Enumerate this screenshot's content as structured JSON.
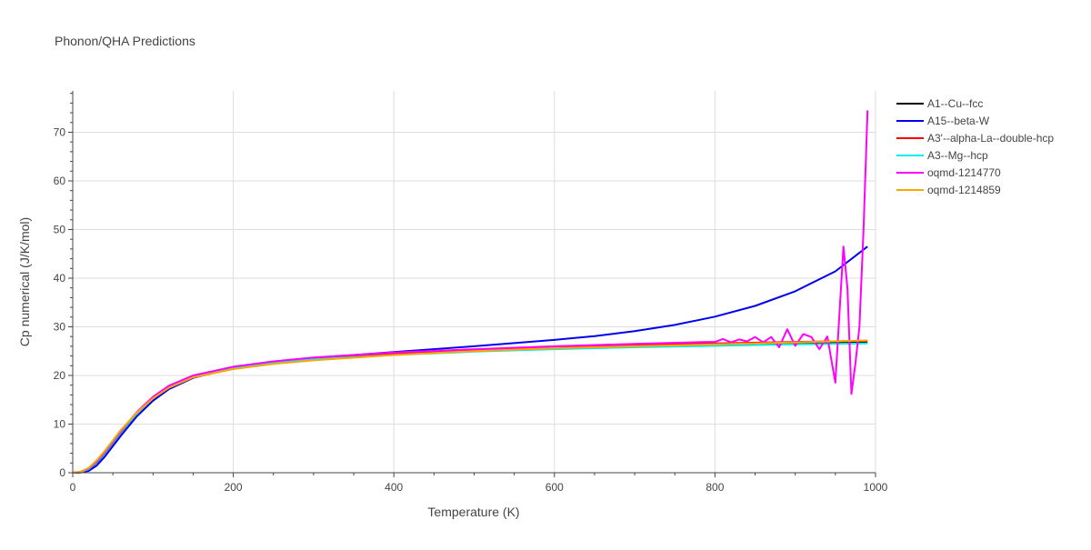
{
  "chart_data": {
    "type": "line",
    "title": "Phonon/QHA Predictions",
    "xlabel": "Temperature (K)",
    "ylabel": "Cp numerical (J/K/mol)",
    "xlim": [
      0,
      1000
    ],
    "ylim": [
      0,
      78.5
    ],
    "xticks": [
      0,
      200,
      400,
      600,
      800,
      1000
    ],
    "yticks": [
      0,
      10,
      20,
      30,
      40,
      50,
      60,
      70
    ],
    "grid": true,
    "legend_position": "top-right",
    "series": [
      {
        "name": "A1--Cu--fcc",
        "color": "#000000",
        "x": [
          0,
          10,
          20,
          30,
          40,
          60,
          80,
          100,
          120,
          150,
          200,
          250,
          300,
          400,
          500,
          600,
          700,
          800,
          900,
          990
        ],
        "y": [
          0,
          0.1,
          0.7,
          2.1,
          4.0,
          8.3,
          12.2,
          15.3,
          17.6,
          19.8,
          21.6,
          22.8,
          23.5,
          24.5,
          25.2,
          25.7,
          26.0,
          26.3,
          26.6,
          26.9
        ]
      },
      {
        "name": "A15--beta-W",
        "color": "#0000ee",
        "x": [
          0,
          10,
          20,
          30,
          40,
          60,
          80,
          100,
          120,
          150,
          200,
          250,
          300,
          400,
          500,
          600,
          650,
          700,
          750,
          800,
          850,
          900,
          950,
          990
        ],
        "y": [
          0,
          0.05,
          0.4,
          1.5,
          3.3,
          7.6,
          11.6,
          14.8,
          17.2,
          19.5,
          21.5,
          22.8,
          23.6,
          24.8,
          26.0,
          27.3,
          28.1,
          29.1,
          30.4,
          32.1,
          34.3,
          37.3,
          41.4,
          46.5
        ]
      },
      {
        "name": "A3'--alpha-La--double-hcp",
        "color": "#ff0000",
        "x": [
          0,
          10,
          20,
          30,
          40,
          60,
          80,
          100,
          120,
          150,
          200,
          250,
          300,
          400,
          500,
          600,
          700,
          800,
          900,
          990
        ],
        "y": [
          0,
          0.15,
          0.8,
          2.3,
          4.2,
          8.5,
          12.3,
          15.4,
          17.7,
          19.9,
          21.6,
          22.7,
          23.4,
          24.4,
          25.2,
          25.9,
          26.3,
          26.6,
          26.9,
          27.1
        ]
      },
      {
        "name": "A3--Mg--hcp",
        "color": "#00eeee",
        "x": [
          0,
          10,
          20,
          30,
          40,
          60,
          80,
          100,
          120,
          150,
          200,
          250,
          300,
          400,
          500,
          600,
          700,
          800,
          900,
          990
        ],
        "y": [
          0,
          0.12,
          0.75,
          2.2,
          4.1,
          8.4,
          12.2,
          15.3,
          17.6,
          19.8,
          21.5,
          22.6,
          23.3,
          24.2,
          24.9,
          25.4,
          25.8,
          26.1,
          26.4,
          26.6
        ]
      },
      {
        "name": "oqmd-1214770",
        "color": "#ff00ff",
        "x": [
          0,
          10,
          20,
          30,
          40,
          60,
          80,
          100,
          120,
          150,
          200,
          250,
          300,
          400,
          500,
          600,
          700,
          790,
          800,
          810,
          820,
          830,
          840,
          850,
          860,
          870,
          880,
          890,
          900,
          910,
          920,
          930,
          940,
          950,
          960,
          965,
          970,
          975,
          980,
          985,
          990
        ],
        "y": [
          0,
          0.2,
          0.9,
          2.4,
          4.3,
          8.6,
          12.5,
          15.6,
          17.9,
          20.0,
          21.8,
          22.9,
          23.7,
          24.7,
          25.4,
          26.0,
          26.5,
          26.9,
          26.9,
          27.5,
          26.8,
          27.4,
          27.0,
          27.9,
          26.8,
          27.9,
          25.8,
          29.5,
          26.1,
          28.5,
          27.9,
          25.4,
          28.0,
          18.5,
          46.5,
          38.0,
          16.2,
          22.5,
          30.0,
          50.0,
          74.5
        ]
      },
      {
        "name": "oqmd-1214859",
        "color": "#ffa500",
        "x": [
          0,
          10,
          20,
          30,
          40,
          60,
          80,
          100,
          120,
          150,
          200,
          250,
          300,
          400,
          500,
          600,
          700,
          800,
          900,
          990
        ],
        "y": [
          0,
          0.25,
          1.0,
          2.6,
          4.5,
          8.8,
          12.4,
          15.3,
          17.5,
          19.6,
          21.3,
          22.4,
          23.1,
          24.2,
          25.0,
          25.6,
          26.0,
          26.4,
          26.8,
          27.2
        ]
      }
    ]
  }
}
